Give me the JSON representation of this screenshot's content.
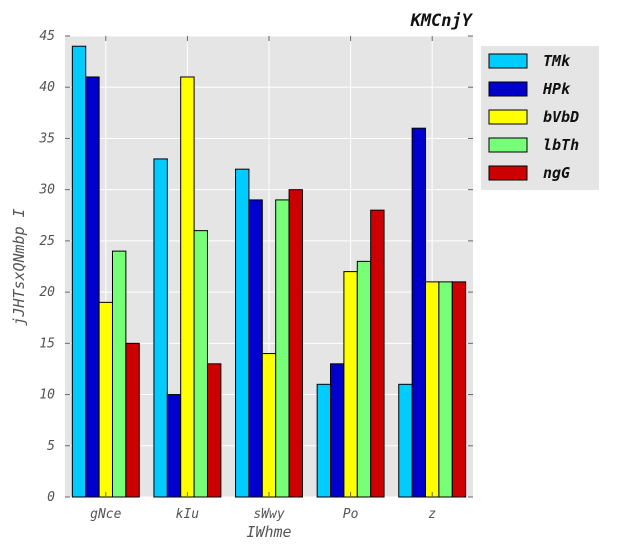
{
  "chart_data": {
    "type": "bar",
    "title": "KMCnjY",
    "xlabel": "IWhme",
    "ylabel": "jJHTsxQNmbp I",
    "categories": [
      "gNce",
      "kIu",
      "sWwy",
      "Po",
      "z"
    ],
    "ylim": [
      0,
      45
    ],
    "yticks": [
      0,
      5,
      10,
      15,
      20,
      25,
      30,
      35,
      40,
      45
    ],
    "grid": true,
    "legend_position": "outside-top-right",
    "series": [
      {
        "name": "TMk",
        "color": "#00ccff",
        "values": [
          44,
          33,
          32,
          11,
          11
        ]
      },
      {
        "name": "HPk",
        "color": "#0000cc",
        "values": [
          41,
          10,
          29,
          13,
          36
        ]
      },
      {
        "name": "bVbD",
        "color": "#ffff00",
        "values": [
          19,
          41,
          14,
          22,
          21
        ]
      },
      {
        "name": "lbTh",
        "color": "#77ff77",
        "values": [
          24,
          26,
          29,
          23,
          21
        ]
      },
      {
        "name": "ngG",
        "color": "#cc0000",
        "values": [
          15,
          13,
          30,
          28,
          21
        ]
      }
    ]
  }
}
